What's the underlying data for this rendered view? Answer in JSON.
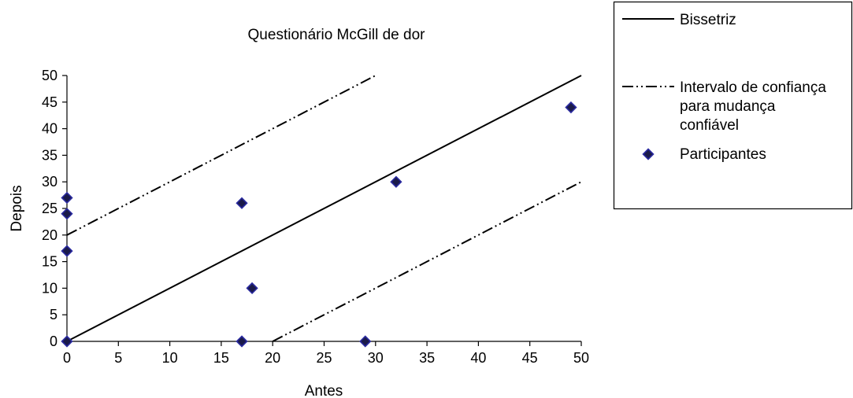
{
  "chart_data": {
    "type": "scatter",
    "title": "Questionário McGill de dor",
    "xlabel": "Antes",
    "ylabel": "Depois",
    "xlim": [
      0,
      50
    ],
    "ylim": [
      0,
      50
    ],
    "xticks": [
      "0",
      "5",
      "10",
      "15",
      "20",
      "25",
      "30",
      "35",
      "40",
      "45",
      "50"
    ],
    "yticks": [
      "0",
      "5",
      "10",
      "15",
      "20",
      "25",
      "30",
      "35",
      "40",
      "45",
      "50"
    ],
    "grid": false,
    "legend_position": "right",
    "series": [
      {
        "name": "Bissetriz",
        "kind": "line",
        "style": "solid",
        "color": "#000000",
        "x": [
          0,
          50
        ],
        "y": [
          0,
          50
        ]
      },
      {
        "name": "Intervalo de confiança para mudança confiável",
        "kind": "line",
        "style": "dash-dot-dot",
        "color": "#000000",
        "segments": [
          {
            "x": [
              0,
              30
            ],
            "y": [
              20,
              50
            ]
          },
          {
            "x": [
              20,
              50
            ],
            "y": [
              0,
              30
            ]
          }
        ]
      },
      {
        "name": "Participantes",
        "kind": "marker",
        "marker": "diamond",
        "color": "#1a1a4a",
        "edge_color": "#2a2aa0",
        "points": [
          {
            "x": 0,
            "y": 0
          },
          {
            "x": 0,
            "y": 17
          },
          {
            "x": 0,
            "y": 24
          },
          {
            "x": 0,
            "y": 27
          },
          {
            "x": 17,
            "y": 0
          },
          {
            "x": 17,
            "y": 26
          },
          {
            "x": 18,
            "y": 10
          },
          {
            "x": 29,
            "y": 0
          },
          {
            "x": 32,
            "y": 30
          },
          {
            "x": 49,
            "y": 44
          }
        ]
      }
    ],
    "legend": {
      "entries": [
        {
          "lines": [
            "Bissetriz"
          ],
          "style": "solid"
        },
        {
          "lines": [
            "Intervalo de confiança",
            "para mudança",
            "confiável"
          ],
          "style": "dash-dot-dot"
        },
        {
          "lines": [
            "Participantes"
          ],
          "style": "marker"
        }
      ]
    }
  }
}
